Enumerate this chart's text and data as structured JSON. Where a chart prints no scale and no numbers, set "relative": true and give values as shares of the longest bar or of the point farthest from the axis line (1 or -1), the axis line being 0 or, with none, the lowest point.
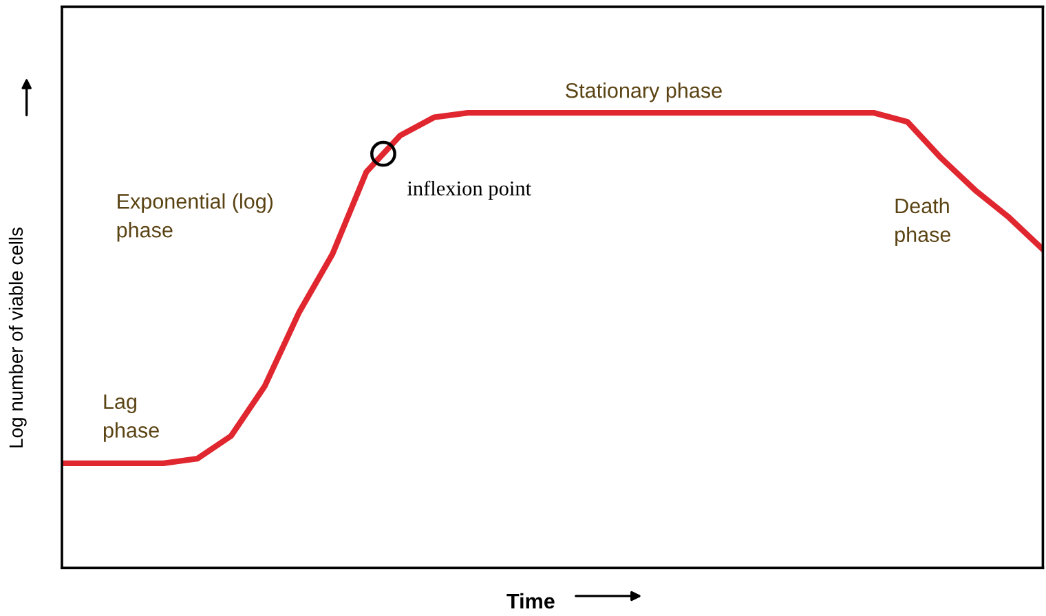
{
  "chart_data": {
    "type": "line",
    "relative": true,
    "xlabel": "Time",
    "ylabel": "Log number of viable cells",
    "categories": [
      null,
      null,
      null,
      null,
      null,
      null,
      null,
      null,
      null,
      null,
      null,
      null,
      null,
      null,
      null,
      null,
      null,
      null,
      null,
      null,
      null,
      null,
      null,
      null,
      null,
      null,
      null,
      null,
      null,
      null
    ],
    "series": [
      {
        "color": "#e0262f",
        "values": [
          0.23,
          0.23,
          0.23,
          0.23,
          0.24,
          0.29,
          0.4,
          0.56,
          0.69,
          0.87,
          0.95,
          0.99,
          1,
          1,
          1,
          1,
          1,
          1,
          1,
          1,
          1,
          1,
          1,
          1,
          1,
          0.98,
          0.9,
          0.83,
          0.77,
          0.7
        ]
      }
    ],
    "annotations": [
      "Stationary phase",
      "inflexion point",
      "Exponential (log)\nphase",
      "Death\nphase",
      "Lag\nphase"
    ],
    "legend": false,
    "marker": "none",
    "line_style": "solid"
  }
}
